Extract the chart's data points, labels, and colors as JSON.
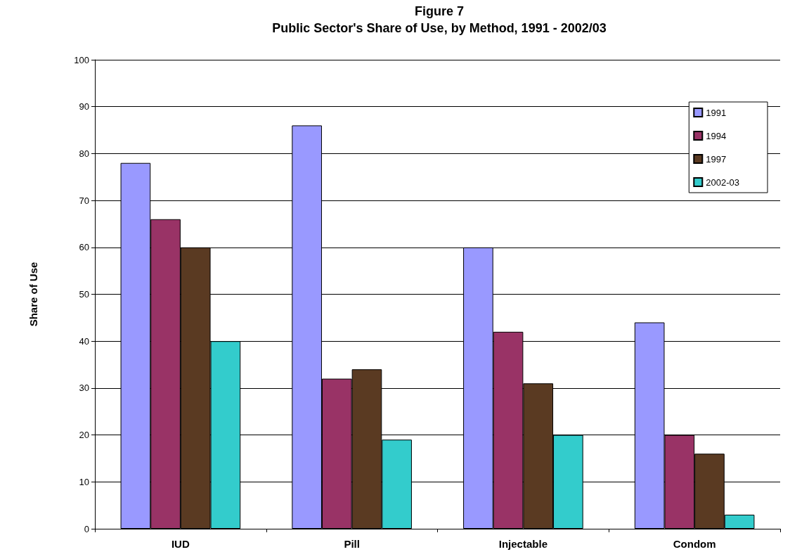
{
  "chart_data": {
    "type": "bar",
    "title": "Figure 7",
    "subtitle": "Public Sector's Share of Use, by Method, 1991 - 2002/03",
    "ylabel": "Share of Use",
    "categories": [
      "IUD",
      "Pill",
      "Injectable",
      "Condom"
    ],
    "series": [
      {
        "name": "1991",
        "color": "#9999ff",
        "values": [
          78,
          86,
          60,
          44
        ]
      },
      {
        "name": "1994",
        "color": "#993366",
        "values": [
          66,
          32,
          42,
          20
        ]
      },
      {
        "name": "1997",
        "color": "#5a3a22",
        "values": [
          60,
          34,
          31,
          16
        ]
      },
      {
        "name": "2002-03",
        "color": "#33cccc",
        "values": [
          40,
          19,
          20,
          3
        ]
      }
    ],
    "ylim": [
      0,
      100
    ],
    "yticks": [
      0,
      10,
      20,
      30,
      40,
      50,
      60,
      70,
      80,
      90,
      100
    ],
    "grid": "y",
    "legend": "top right"
  }
}
